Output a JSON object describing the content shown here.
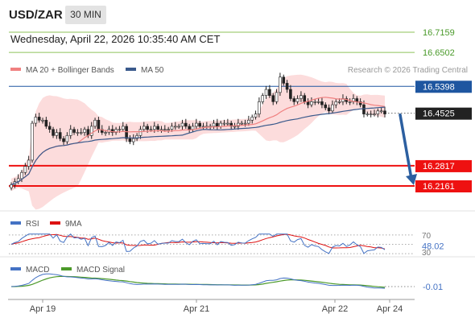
{
  "header": {
    "symbol": "USD/ZAR",
    "timeframe": "30 MIN",
    "datetime": "Wednesday, April 22, 2026 10:35:40 AM CET"
  },
  "chart_data": [
    {
      "type": "line",
      "panel": "price",
      "legend": [
        {
          "label": "MA 20 + Bollinger Bands",
          "color": "#f08080"
        },
        {
          "label": "MA 50",
          "color": "#3a5a8c"
        }
      ],
      "watermark": "Research © 2026 Trading Central",
      "x_ticks": [
        "Apr 19",
        "Apr 21",
        "Apr 22",
        "Apr 24"
      ],
      "levels": [
        {
          "value": 16.7159,
          "label": "16.7159",
          "kind": "resistance",
          "color": "#8dc35a"
        },
        {
          "value": 16.6502,
          "label": "16.6502",
          "kind": "resistance",
          "color": "#8dc35a"
        },
        {
          "value": 16.5398,
          "label": "16.5398",
          "kind": "pivot",
          "color": "#1e56a0"
        },
        {
          "value": 16.2817,
          "label": "16.2817",
          "kind": "support",
          "color": "#ee1111"
        },
        {
          "value": 16.2161,
          "label": "16.2161",
          "kind": "support",
          "color": "#ee1111"
        }
      ],
      "last_price": {
        "value": 16.4525,
        "label": "16.4525"
      },
      "ylim": [
        16.2,
        16.75
      ],
      "closes": [
        16.22,
        16.23,
        16.24,
        16.26,
        16.28,
        16.3,
        16.42,
        16.44,
        16.43,
        16.43,
        16.41,
        16.4,
        16.38,
        16.39,
        16.37,
        16.36,
        16.38,
        16.4,
        16.39,
        16.39,
        16.39,
        16.4,
        16.38,
        16.41,
        16.43,
        16.4,
        16.39,
        16.39,
        16.4,
        16.39,
        16.4,
        16.4,
        16.41,
        16.37,
        16.36,
        16.37,
        16.38,
        16.4,
        16.41,
        16.4,
        16.4,
        16.41,
        16.4,
        16.4,
        16.4,
        16.4,
        16.41,
        16.41,
        16.41,
        16.42,
        16.41,
        16.4,
        16.41,
        16.42,
        16.41,
        16.41,
        16.41,
        16.41,
        16.42,
        16.41,
        16.42,
        16.42,
        16.42,
        16.41,
        16.41,
        16.42,
        16.42,
        16.42,
        16.43,
        16.44,
        16.45,
        16.49,
        16.51,
        16.53,
        16.51,
        16.49,
        16.52,
        16.57,
        16.55,
        16.53,
        16.5,
        16.49,
        16.5,
        16.51,
        16.49,
        16.48,
        16.49,
        16.49,
        16.49,
        16.48,
        16.47,
        16.46,
        16.48,
        16.49,
        16.49,
        16.5,
        16.49,
        16.49,
        16.5,
        16.49,
        16.48,
        16.45,
        16.45,
        16.45,
        16.45,
        16.46,
        16.46,
        16.45
      ],
      "forecast_arrow": {
        "from": 16.45,
        "to": 16.2161
      }
    },
    {
      "type": "line",
      "panel": "rsi",
      "legend": [
        {
          "label": "RSI",
          "color": "#4472c4"
        },
        {
          "label": "9MA",
          "color": "#dd1111"
        }
      ],
      "ylim": [
        25,
        80
      ],
      "ticks": [
        "70",
        "30"
      ],
      "last_value": "48.02"
    },
    {
      "type": "line",
      "panel": "macd",
      "legend": [
        {
          "label": "MACD",
          "color": "#4472c4"
        },
        {
          "label": "MACD Signal",
          "color": "#4c9a2a"
        }
      ],
      "last_value": "-0.01"
    }
  ]
}
